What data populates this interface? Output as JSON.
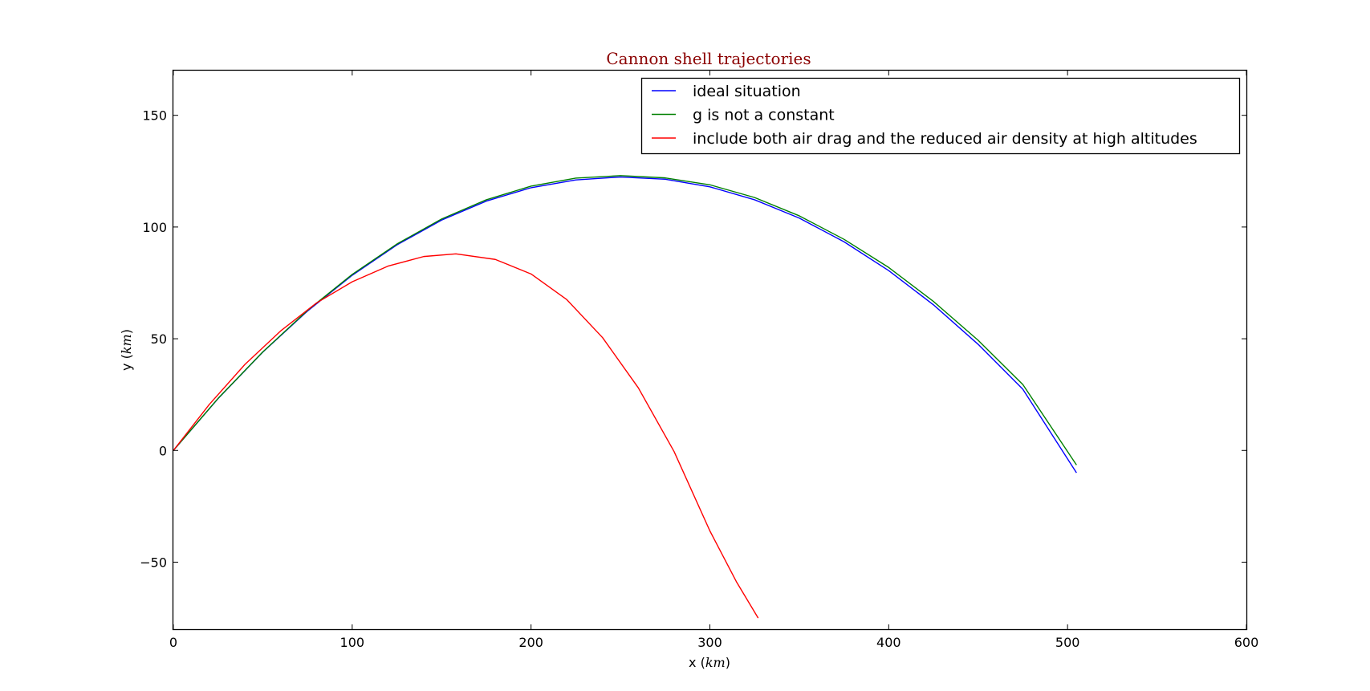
{
  "chart_data": {
    "type": "line",
    "title": "Cannon shell trajectories",
    "title_color": "#8b0000",
    "xlabel": {
      "text": "x (",
      "unit": "km",
      "close": ")"
    },
    "ylabel": {
      "text": "y (",
      "unit": "km",
      "close": ")"
    },
    "xlim": [
      0,
      600
    ],
    "ylim": [
      -80,
      170
    ],
    "xticks": [
      0,
      100,
      200,
      300,
      400,
      500,
      600
    ],
    "yticks": [
      -50,
      0,
      50,
      100,
      150
    ],
    "ytick_labels": [
      "−50",
      "0",
      "50",
      "100",
      "150"
    ],
    "grid": false,
    "legend_position": "top-right",
    "series": [
      {
        "name": "ideal situation",
        "color": "#0000ff",
        "x": [
          0,
          25,
          50,
          75,
          100,
          125,
          150,
          175,
          200,
          225,
          250,
          275,
          300,
          325,
          350,
          375,
          400,
          425,
          450,
          475,
          505
        ],
        "y": [
          0,
          23.2,
          44.0,
          62.4,
          78.4,
          92.0,
          103.1,
          111.6,
          117.6,
          121.1,
          122.4,
          121.4,
          118.0,
          112.2,
          104.0,
          93.4,
          80.5,
          65.2,
          47.5,
          27.4,
          -10
        ]
      },
      {
        "name": "g is not a constant",
        "color": "#008000",
        "x": [
          0,
          25,
          50,
          75,
          100,
          125,
          150,
          175,
          200,
          225,
          250,
          275,
          300,
          325,
          350,
          375,
          400,
          425,
          450,
          475,
          505
        ],
        "y": [
          0,
          23.3,
          44.1,
          62.7,
          78.8,
          92.4,
          103.6,
          112.2,
          118.3,
          121.9,
          123.0,
          122.0,
          118.9,
          113.2,
          105.0,
          94.5,
          81.9,
          66.7,
          49.3,
          29.5,
          -6.5
        ]
      },
      {
        "name": "include both air drag and the reduced air density at high altitudes",
        "color": "#ff0000",
        "x": [
          0,
          20,
          40,
          60,
          80,
          100,
          120,
          140,
          158,
          180,
          200,
          220,
          240,
          260,
          280,
          300,
          315,
          327
        ],
        "y": [
          0,
          20.5,
          38.5,
          53.5,
          66.0,
          75.5,
          82.5,
          86.8,
          88.0,
          85.5,
          79.0,
          67.5,
          50.5,
          28.0,
          -0.5,
          -36.0,
          -59.0,
          -75
        ]
      }
    ]
  }
}
